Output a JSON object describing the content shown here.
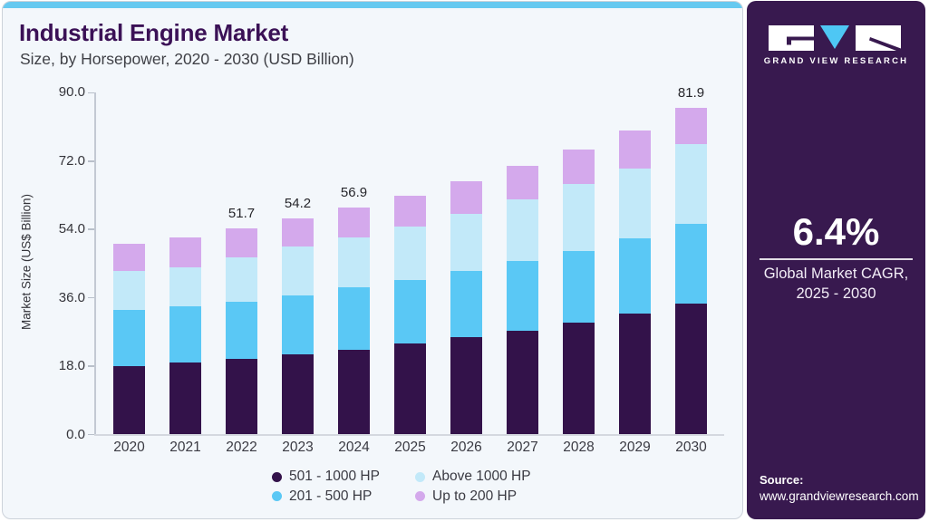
{
  "card": {
    "title": "Industrial Engine Market",
    "subtitle": "Size, by Horsepower, 2020 - 2030 (USD Billion)"
  },
  "chart_data": {
    "type": "bar",
    "stacked": true,
    "title": "Industrial Engine Market Size, by Horsepower, 2020 - 2030 (USD Billion)",
    "xlabel": "",
    "ylabel": "Market Size (US$ Billion)",
    "ylim": [
      0,
      90
    ],
    "yticks": [
      0,
      18,
      36,
      54,
      72,
      90
    ],
    "ytick_labels": [
      "0.0",
      "18.0",
      "36.0",
      "54.0",
      "72.0",
      "90.0"
    ],
    "grid": false,
    "legend_position": "bottom",
    "categories": [
      "2020",
      "2021",
      "2022",
      "2023",
      "2024",
      "2025",
      "2026",
      "2027",
      "2028",
      "2029",
      "2030"
    ],
    "series": [
      {
        "name": "501 - 1000 HP",
        "color": "#33124a",
        "values": [
          17.0,
          18.0,
          19.0,
          20.1,
          21.2,
          22.7,
          24.3,
          26.0,
          28.0,
          30.2,
          32.7
        ]
      },
      {
        "name": "201 - 500 HP",
        "color": "#5ac8f5",
        "values": [
          14.1,
          14.2,
          14.3,
          14.8,
          15.6,
          16.1,
          16.7,
          17.4,
          17.9,
          19.1,
          20.1
        ]
      },
      {
        "name": "Above 1000 HP",
        "color": "#c2e9f9",
        "values": [
          9.9,
          9.7,
          11.2,
          12.3,
          12.6,
          13.3,
          14.3,
          15.5,
          17.0,
          17.4,
          20.2
        ]
      },
      {
        "name": "Up to 200 HP",
        "color": "#d4a9ec",
        "values": [
          6.8,
          7.6,
          7.2,
          7.0,
          7.5,
          7.9,
          8.2,
          8.5,
          8.7,
          9.7,
          8.9
        ]
      }
    ],
    "totals": [
      47.8,
      49.5,
      51.7,
      54.2,
      56.9,
      60.0,
      63.5,
      67.4,
      71.6,
      76.4,
      81.9
    ],
    "bar_labels": {
      "2022": "51.7",
      "2023": "54.2",
      "2024": "56.9",
      "2030": "81.9"
    }
  },
  "sidebar": {
    "logo_text": "GRAND VIEW RESEARCH",
    "cagr_value": "6.4%",
    "cagr_label_line1": "Global Market CAGR,",
    "cagr_label_line2": "2025 - 2030",
    "source_label": "Source:",
    "source_url": "www.grandviewresearch.com"
  },
  "colors": {
    "card_background": "#f3f7fb",
    "top_strip": "#66c9f0",
    "sidebar_background": "#38194f",
    "title_text": "#3b1156",
    "logo_triangle": "#4ec7f4",
    "axis": "#c3c9d3"
  }
}
